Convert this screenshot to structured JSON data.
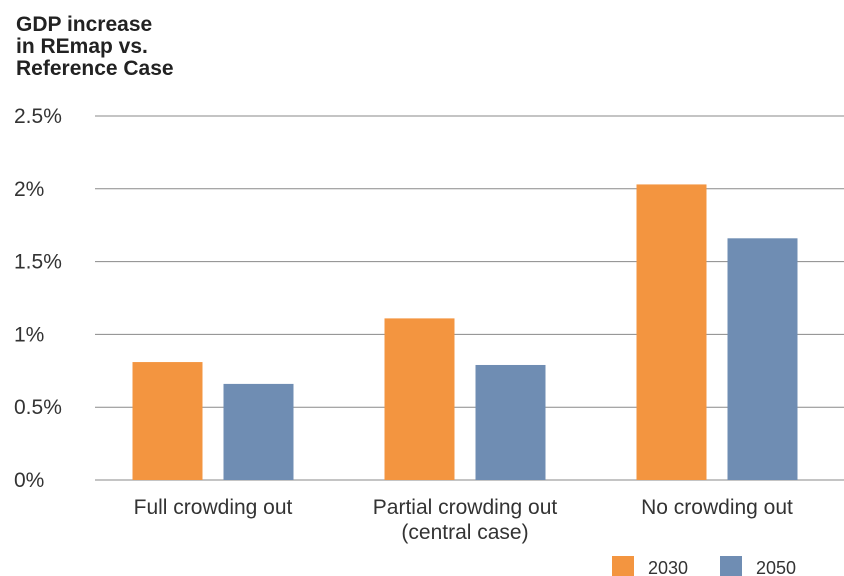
{
  "chart_data": {
    "type": "bar",
    "title": "GDP increase\nin REmap vs.\nReference Case",
    "categories": [
      [
        "Full crowding out"
      ],
      [
        "Partial crowding out",
        "(central case)"
      ],
      [
        "No crowding out"
      ]
    ],
    "series": [
      {
        "name": "2030",
        "values": [
          0.81,
          1.11,
          2.03
        ],
        "color": "#f39540"
      },
      {
        "name": "2050",
        "values": [
          0.66,
          0.79,
          1.66
        ],
        "color": "#6f8db3"
      }
    ],
    "y_ticks": [
      "0%",
      "0.5%",
      "1%",
      "1.5%",
      "2%",
      "2.5%"
    ],
    "y_tick_values": [
      0,
      0.5,
      1,
      1.5,
      2,
      2.5
    ],
    "ylim": [
      0,
      2.5
    ],
    "ylabel_unit": "%",
    "grid": true,
    "legend_position": "bottom-right"
  }
}
